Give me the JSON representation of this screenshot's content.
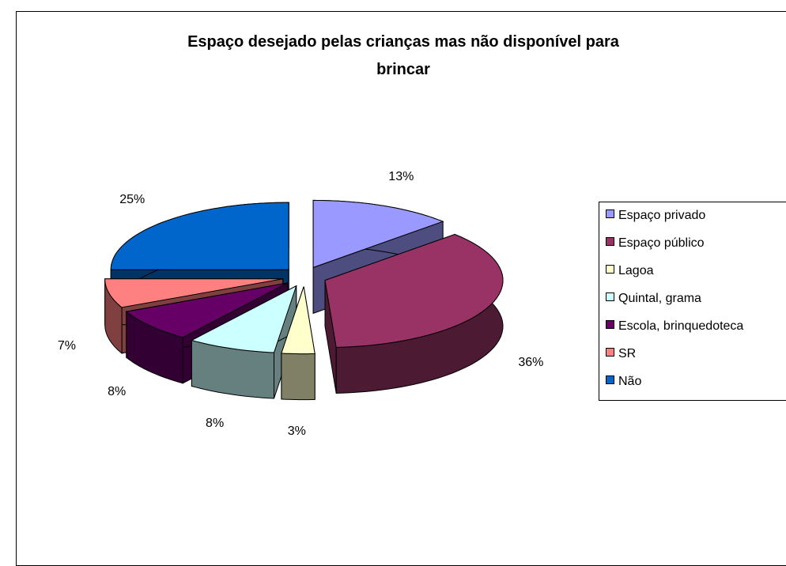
{
  "chart_data": {
    "type": "pie",
    "title": "Espaço desejado pelas crianças mas não disponível para brincar",
    "categories": [
      "Espaço privado",
      "Espaço público",
      "Lagoa",
      "Quintal, grama",
      "Escola, brinquedoteca",
      "SR",
      "Não"
    ],
    "values": [
      13,
      36,
      3,
      8,
      8,
      7,
      25
    ],
    "value_labels": [
      "13%",
      "36%",
      "3%",
      "8%",
      "8%",
      "7%",
      "25%"
    ],
    "colors": [
      "#9999ff",
      "#993366",
      "#ffffcc",
      "#ccffff",
      "#660066",
      "#ff8080",
      "#0066cc"
    ],
    "legend": "right"
  }
}
